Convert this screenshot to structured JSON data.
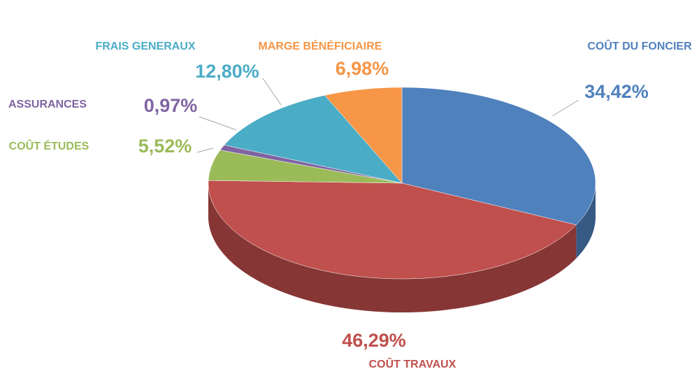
{
  "chart_data": {
    "type": "pie3d",
    "categories": [
      "COÛT DU FONCIER",
      "COÛT TRAVAUX",
      "COÛT ÉTUDES",
      "ASSURANCES",
      "FRAIS GENERAUX",
      "MARGE BÉNÉFICIAIRE"
    ],
    "values": [
      34.42,
      46.29,
      5.52,
      0.97,
      12.8,
      6.98
    ],
    "value_labels": [
      "34,42%",
      "46,29%",
      "5,52%",
      "0,97%",
      "12,80%",
      "6,98%"
    ],
    "colors": [
      "#4f81bd",
      "#c0504d",
      "#9bbb59",
      "#8064a2",
      "#4bacc6",
      "#f79646"
    ]
  }
}
